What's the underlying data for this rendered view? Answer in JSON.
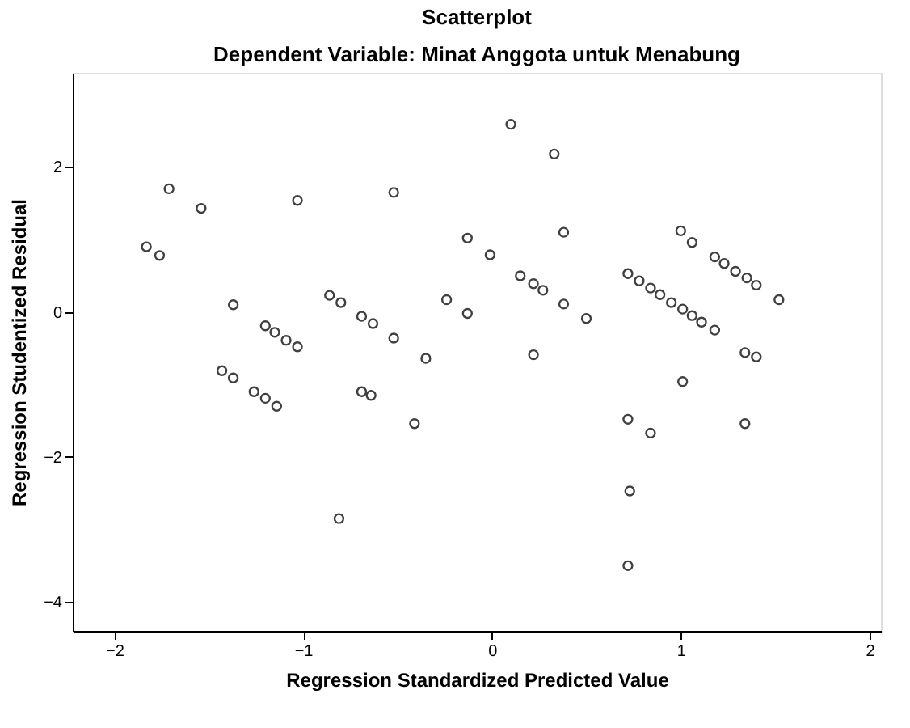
{
  "chart_data": {
    "type": "scatter",
    "title": "Scatterplot",
    "subtitle": "Dependent Variable: Minat Anggota untuk Menabung",
    "xlabel": "Regression Standardized Predicted Value",
    "ylabel": "Regression Studentized Residual",
    "x": [
      -1.71,
      -1.54,
      -1.03,
      -0.52,
      -1.83,
      -1.76,
      -0.13,
      -1.37,
      -0.86,
      -0.8,
      -0.24,
      -0.13,
      -1.2,
      -1.15,
      -1.09,
      -1.03,
      -0.69,
      -0.63,
      -0.52,
      -0.35,
      0.1,
      0.33,
      0.38,
      -0.01,
      1.0,
      1.06,
      0.15,
      0.22,
      0.27,
      0.38,
      0.5,
      0.22,
      0.72,
      0.78,
      0.84,
      0.89,
      0.95,
      1.01,
      1.06,
      1.11,
      1.18,
      1.18,
      1.23,
      1.29,
      1.35,
      1.4,
      1.52,
      1.34,
      1.4,
      -1.43,
      -1.37,
      -1.26,
      -1.2,
      -1.14,
      -0.69,
      -0.64,
      -0.41,
      -0.81,
      1.01,
      0.72,
      0.84,
      1.34,
      0.73,
      0.72
    ],
    "series": [
      {
        "color": "#404040",
        "values": [
          1.7,
          1.43,
          1.54,
          1.65,
          0.9,
          0.78,
          1.02,
          0.1,
          0.23,
          0.13,
          0.17,
          -0.02,
          -0.19,
          -0.28,
          -0.39,
          -0.48,
          -0.06,
          -0.16,
          -0.36,
          -0.64,
          2.59,
          2.18,
          1.1,
          0.79,
          1.12,
          0.96,
          0.5,
          0.39,
          0.3,
          0.11,
          -0.09,
          -0.59,
          0.53,
          0.43,
          0.33,
          0.24,
          0.13,
          0.04,
          -0.05,
          -0.14,
          -0.25,
          0.76,
          0.67,
          0.56,
          0.47,
          0.37,
          0.17,
          -0.56,
          -0.62,
          -0.81,
          -0.91,
          -1.1,
          -1.19,
          -1.3,
          -1.1,
          -1.15,
          -1.54,
          -2.85,
          -0.96,
          -1.48,
          -1.67,
          -1.54,
          -2.47,
          -3.5
        ]
      }
    ],
    "xlim": [
      -2.22,
      2.06
    ],
    "xticks": [
      -2,
      -1,
      0,
      1,
      2
    ],
    "ylim": [
      -4.4,
      3.3
    ],
    "yticks": [
      -4,
      -2,
      0,
      2
    ],
    "marker": "circle",
    "grid": false,
    "legend": false
  }
}
